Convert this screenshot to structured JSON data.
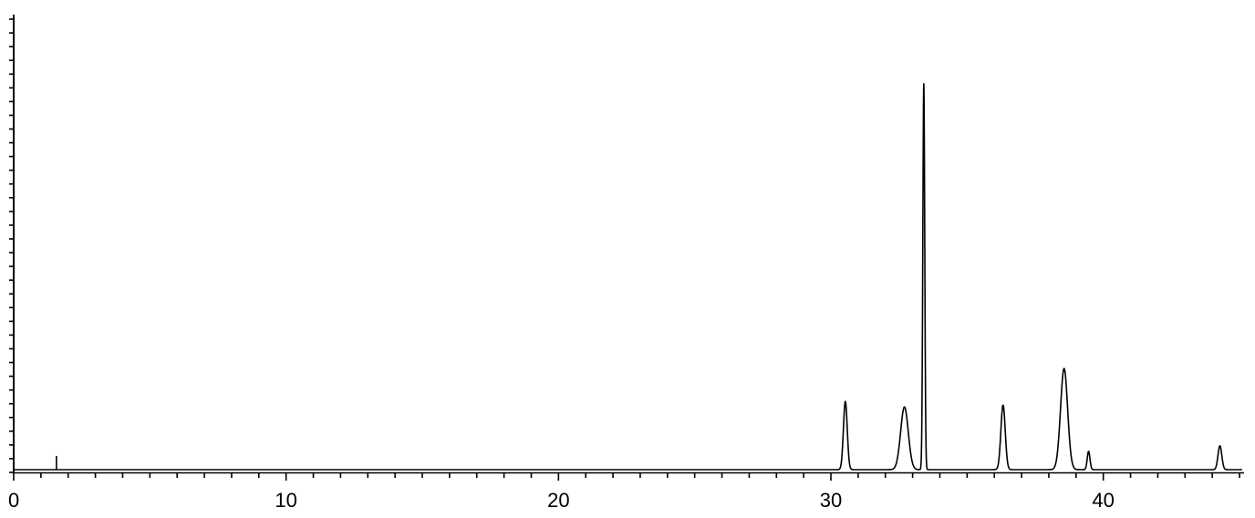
{
  "chart_data": {
    "type": "line",
    "title": "",
    "xlabel": "",
    "ylabel": "",
    "xlim": [
      0,
      45.1
    ],
    "ylim": [
      0,
      100
    ],
    "x_major_ticks": [
      0,
      10,
      20,
      30,
      40
    ],
    "x_tick_labels": [
      "0",
      "10",
      "20",
      "30",
      "40"
    ],
    "x_minor_step": 1,
    "y_minor_step": 3,
    "y_tick_labels_shown": false,
    "grid": false,
    "legend": "none",
    "line_color": "#000000",
    "baseline": 0.6,
    "marker_spike": {
      "x": 1.57,
      "y": 3.6
    },
    "peaks": [
      {
        "x": 30.53,
        "y": 14.9,
        "width": 0.07
      },
      {
        "x": 32.7,
        "y": 13.7,
        "width": 0.14
      },
      {
        "x": 33.41,
        "y": 84.3,
        "width": 0.035
      },
      {
        "x": 36.32,
        "y": 14.1,
        "width": 0.08
      },
      {
        "x": 38.56,
        "y": 22.1,
        "width": 0.13
      },
      {
        "x": 39.46,
        "y": 4.0,
        "width": 0.05
      },
      {
        "x": 44.28,
        "y": 5.2,
        "width": 0.07
      }
    ]
  }
}
